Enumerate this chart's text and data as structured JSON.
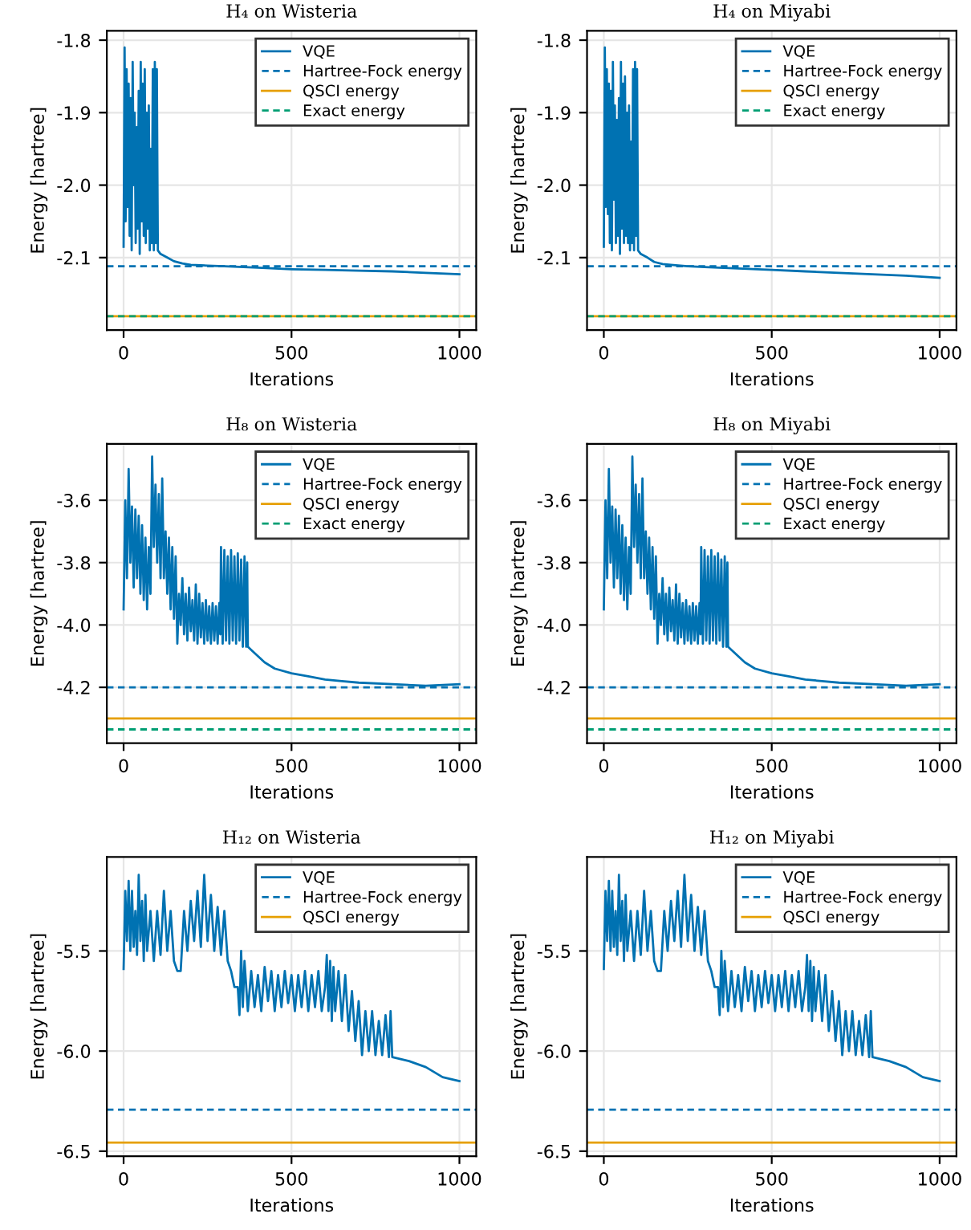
{
  "chart_data": [
    {
      "type": "line",
      "title": "H₄ on Wisteria",
      "xlabel": "Iterations",
      "ylabel": "Energy [hartree]",
      "xlim": [
        -50,
        1050
      ],
      "xticks": [
        0,
        500,
        1000
      ],
      "ylim": [
        -2.2,
        -1.787
      ],
      "yticks": [
        -2.1,
        {
          "value": -2.0,
          "label": "-2.0"
        },
        -1.9,
        -1.8
      ],
      "grid": true,
      "legend": "top right",
      "series": [
        {
          "name": "VQE",
          "color": "#0072b2",
          "line_style": "solid",
          "x": [
            0,
            3,
            6,
            9,
            12,
            15,
            18,
            21,
            24,
            27,
            30,
            33,
            36,
            39,
            42,
            45,
            48,
            51,
            54,
            57,
            60,
            63,
            66,
            69,
            72,
            75,
            78,
            81,
            84,
            87,
            90,
            93,
            96,
            99,
            102,
            110,
            130,
            150,
            175,
            200,
            250,
            300,
            400,
            500,
            600,
            700,
            800,
            900,
            1000
          ],
          "values": [
            -2.085,
            -1.81,
            -2.05,
            -1.84,
            -2.03,
            -1.86,
            -2.07,
            -1.88,
            -2.09,
            -1.83,
            -2.0,
            -1.9,
            -2.08,
            -1.92,
            -2.06,
            -1.87,
            -2.095,
            -1.83,
            -2.05,
            -1.86,
            -2.07,
            -1.84,
            -2.08,
            -1.9,
            -2.06,
            -1.89,
            -2.09,
            -1.95,
            -2.08,
            -1.84,
            -2.09,
            -1.83,
            -2.08,
            -1.84,
            -2.09,
            -2.095,
            -2.1,
            -2.105,
            -2.108,
            -2.11,
            -2.111,
            -2.112,
            -2.114,
            -2.116,
            -2.117,
            -2.118,
            -2.119,
            -2.121,
            -2.123
          ]
        }
      ],
      "ref_lines": [
        {
          "axis": "y",
          "value": -2.112,
          "label": "Hartree-Fock energy",
          "color": "#0072b2",
          "line_style": "dashed"
        },
        {
          "axis": "y",
          "value": -2.181,
          "label": "QSCI energy",
          "color": "#e69f00",
          "line_style": "solid"
        },
        {
          "axis": "y",
          "value": -2.181,
          "label": "Exact energy",
          "color": "#009e73",
          "line_style": "dashed"
        }
      ]
    },
    {
      "type": "line",
      "title": "H₄ on Miyabi",
      "xlabel": "Iterations",
      "ylabel": "Energy [hartree]",
      "xlim": [
        -50,
        1050
      ],
      "xticks": [
        0,
        500,
        1000
      ],
      "ylim": [
        -2.2,
        -1.787
      ],
      "yticks": [
        -2.1,
        {
          "value": -2.0,
          "label": "-2.0"
        },
        -1.9,
        -1.8
      ],
      "grid": true,
      "legend": "top right",
      "series": [
        {
          "name": "VQE",
          "color": "#0072b2",
          "line_style": "solid",
          "x": [
            0,
            3,
            6,
            9,
            12,
            15,
            18,
            21,
            24,
            27,
            30,
            33,
            36,
            39,
            42,
            45,
            48,
            51,
            54,
            57,
            60,
            63,
            66,
            69,
            72,
            75,
            78,
            81,
            84,
            87,
            90,
            93,
            96,
            99,
            102,
            110,
            130,
            150,
            175,
            200,
            250,
            300,
            400,
            500,
            600,
            700,
            800,
            900,
            1000
          ],
          "values": [
            -2.085,
            -1.81,
            -2.03,
            -1.84,
            -2.04,
            -1.86,
            -2.08,
            -1.87,
            -2.09,
            -1.83,
            -2.02,
            -1.89,
            -2.08,
            -1.91,
            -2.07,
            -1.88,
            -2.095,
            -1.83,
            -2.06,
            -1.86,
            -2.08,
            -1.85,
            -2.07,
            -1.9,
            -2.08,
            -1.89,
            -2.09,
            -1.94,
            -2.08,
            -1.84,
            -2.09,
            -1.83,
            -2.07,
            -1.84,
            -2.09,
            -2.095,
            -2.1,
            -2.106,
            -2.109,
            -2.11,
            -2.112,
            -2.113,
            -2.115,
            -2.117,
            -2.119,
            -2.121,
            -2.123,
            -2.125,
            -2.128
          ]
        }
      ],
      "ref_lines": [
        {
          "axis": "y",
          "value": -2.112,
          "label": "Hartree-Fock energy",
          "color": "#0072b2",
          "line_style": "dashed"
        },
        {
          "axis": "y",
          "value": -2.181,
          "label": "QSCI energy",
          "color": "#e69f00",
          "line_style": "solid"
        },
        {
          "axis": "y",
          "value": -2.181,
          "label": "Exact energy",
          "color": "#009e73",
          "line_style": "dashed"
        }
      ]
    },
    {
      "type": "line",
      "title": "H₈ on Wisteria",
      "xlabel": "Iterations",
      "ylabel": "Energy [hartree]",
      "xlim": [
        -50,
        1050
      ],
      "xticks": [
        0,
        500,
        1000
      ],
      "ylim": [
        -4.379,
        -3.419
      ],
      "yticks": [
        -4.2,
        {
          "value": -4.0,
          "label": "-4.0"
        },
        -3.8,
        -3.6
      ],
      "grid": true,
      "legend": "top right",
      "series": [
        {
          "name": "VQE",
          "color": "#0072b2",
          "line_style": "solid",
          "x": [
            0,
            5,
            10,
            15,
            20,
            25,
            30,
            35,
            40,
            45,
            50,
            55,
            60,
            65,
            70,
            75,
            80,
            85,
            90,
            95,
            100,
            105,
            110,
            115,
            120,
            125,
            130,
            135,
            140,
            145,
            150,
            155,
            160,
            165,
            170,
            175,
            180,
            185,
            190,
            195,
            200,
            205,
            210,
            215,
            220,
            225,
            230,
            235,
            240,
            245,
            250,
            255,
            260,
            265,
            270,
            275,
            280,
            285,
            288,
            290,
            295,
            300,
            305,
            310,
            315,
            320,
            325,
            330,
            335,
            340,
            345,
            350,
            355,
            360,
            365,
            368,
            370,
            380,
            400,
            420,
            450,
            500,
            550,
            600,
            650,
            700,
            800,
            900,
            1000
          ],
          "values": [
            -3.95,
            -3.6,
            -3.85,
            -3.5,
            -3.8,
            -3.62,
            -3.88,
            -3.63,
            -3.85,
            -3.65,
            -3.9,
            -3.68,
            -3.92,
            -3.72,
            -3.95,
            -3.75,
            -3.9,
            -3.46,
            -3.75,
            -3.55,
            -3.8,
            -3.58,
            -3.85,
            -3.53,
            -3.85,
            -3.7,
            -3.9,
            -3.72,
            -3.95,
            -3.75,
            -3.98,
            -3.78,
            -4.06,
            -3.9,
            -4.0,
            -3.85,
            -4.03,
            -3.9,
            -4.05,
            -3.88,
            -4.02,
            -3.92,
            -4.05,
            -3.87,
            -4.06,
            -3.9,
            -4.04,
            -3.93,
            -4.06,
            -3.92,
            -4.05,
            -3.94,
            -4.06,
            -3.93,
            -4.05,
            -3.94,
            -4.06,
            -3.93,
            -4.03,
            -3.75,
            -4.06,
            -3.76,
            -4.05,
            -3.78,
            -4.06,
            -3.76,
            -4.05,
            -3.78,
            -4.06,
            -3.77,
            -4.05,
            -3.79,
            -4.07,
            -3.78,
            -4.07,
            -3.8,
            -4.07,
            -4.08,
            -4.1,
            -4.12,
            -4.14,
            -4.155,
            -4.165,
            -4.175,
            -4.18,
            -4.185,
            -4.19,
            -4.195,
            -4.19
          ]
        }
      ],
      "ref_lines": [
        {
          "axis": "y",
          "value": -4.2,
          "label": "Hartree-Fock energy",
          "color": "#0072b2",
          "line_style": "dashed"
        },
        {
          "axis": "y",
          "value": -4.3,
          "label": "QSCI energy",
          "color": "#e69f00",
          "line_style": "solid"
        },
        {
          "axis": "y",
          "value": -4.335,
          "label": "Exact energy",
          "color": "#009e73",
          "line_style": "dashed"
        }
      ]
    },
    {
      "type": "line",
      "title": "H₈ on Miyabi",
      "xlabel": "Iterations",
      "ylabel": "Energy [hartree]",
      "xlim": [
        -50,
        1050
      ],
      "xticks": [
        0,
        500,
        1000
      ],
      "ylim": [
        -4.379,
        -3.419
      ],
      "yticks": [
        -4.2,
        {
          "value": -4.0,
          "label": "-4.0"
        },
        -3.8,
        -3.6
      ],
      "grid": true,
      "legend": "top right",
      "series": [
        {
          "name": "VQE",
          "color": "#0072b2",
          "line_style": "solid",
          "x": [
            0,
            5,
            10,
            15,
            20,
            25,
            30,
            35,
            40,
            45,
            50,
            55,
            60,
            65,
            70,
            75,
            80,
            85,
            90,
            95,
            100,
            105,
            110,
            115,
            120,
            125,
            130,
            135,
            140,
            145,
            150,
            155,
            160,
            165,
            170,
            175,
            180,
            185,
            190,
            195,
            200,
            205,
            210,
            215,
            220,
            225,
            230,
            235,
            240,
            245,
            250,
            255,
            260,
            265,
            270,
            275,
            280,
            285,
            288,
            290,
            295,
            300,
            305,
            310,
            315,
            320,
            325,
            330,
            335,
            340,
            345,
            350,
            355,
            360,
            365,
            368,
            370,
            380,
            400,
            420,
            450,
            500,
            550,
            600,
            650,
            700,
            800,
            900,
            1000
          ],
          "values": [
            -3.95,
            -3.6,
            -3.85,
            -3.5,
            -3.8,
            -3.62,
            -3.88,
            -3.63,
            -3.85,
            -3.65,
            -3.9,
            -3.68,
            -3.92,
            -3.72,
            -3.95,
            -3.75,
            -3.9,
            -3.46,
            -3.75,
            -3.55,
            -3.8,
            -3.58,
            -3.85,
            -3.53,
            -3.85,
            -3.7,
            -3.9,
            -3.72,
            -3.95,
            -3.75,
            -3.98,
            -3.78,
            -4.06,
            -3.9,
            -4.0,
            -3.85,
            -4.03,
            -3.9,
            -4.05,
            -3.88,
            -4.02,
            -3.92,
            -4.05,
            -3.87,
            -4.06,
            -3.9,
            -4.04,
            -3.93,
            -4.06,
            -3.92,
            -4.05,
            -3.94,
            -4.06,
            -3.93,
            -4.05,
            -3.94,
            -4.06,
            -3.93,
            -4.03,
            -3.75,
            -4.06,
            -3.76,
            -4.05,
            -3.78,
            -4.06,
            -3.76,
            -4.05,
            -3.78,
            -4.06,
            -3.77,
            -4.05,
            -3.79,
            -4.07,
            -3.78,
            -4.07,
            -3.8,
            -4.07,
            -4.08,
            -4.1,
            -4.12,
            -4.14,
            -4.155,
            -4.165,
            -4.175,
            -4.18,
            -4.185,
            -4.19,
            -4.195,
            -4.19
          ]
        }
      ],
      "ref_lines": [
        {
          "axis": "y",
          "value": -4.2,
          "label": "Hartree-Fock energy",
          "color": "#0072b2",
          "line_style": "dashed"
        },
        {
          "axis": "y",
          "value": -4.3,
          "label": "QSCI energy",
          "color": "#e69f00",
          "line_style": "solid"
        },
        {
          "axis": "y",
          "value": -4.335,
          "label": "Exact energy",
          "color": "#009e73",
          "line_style": "dashed"
        }
      ]
    },
    {
      "type": "line",
      "title": "H₁₂ on Wisteria",
      "xlabel": "Iterations",
      "ylabel": "Energy [hartree]",
      "xlim": [
        -50,
        1050
      ],
      "xticks": [
        0,
        500,
        1000
      ],
      "ylim": [
        -6.525,
        -5.03
      ],
      "yticks": [
        -6.5,
        {
          "value": -6.0,
          "label": "-6.0"
        },
        -5.5
      ],
      "grid": true,
      "legend": "top right",
      "series": [
        {
          "name": "VQE",
          "color": "#0072b2",
          "line_style": "solid",
          "x": [
            0,
            5,
            10,
            15,
            20,
            25,
            30,
            35,
            40,
            45,
            50,
            55,
            60,
            65,
            70,
            80,
            90,
            100,
            110,
            120,
            130,
            140,
            150,
            160,
            170,
            180,
            190,
            200,
            210,
            220,
            230,
            240,
            250,
            260,
            270,
            280,
            290,
            300,
            310,
            320,
            330,
            340,
            345,
            350,
            355,
            360,
            370,
            380,
            390,
            400,
            410,
            420,
            430,
            440,
            450,
            460,
            470,
            480,
            490,
            500,
            510,
            520,
            530,
            540,
            550,
            560,
            570,
            580,
            590,
            600,
            605,
            610,
            615,
            620,
            625,
            630,
            640,
            650,
            660,
            670,
            680,
            690,
            700,
            710,
            720,
            730,
            740,
            750,
            760,
            770,
            780,
            790,
            795,
            800,
            850,
            900,
            950,
            1000
          ],
          "values": [
            -5.59,
            -5.2,
            -5.45,
            -5.15,
            -5.5,
            -5.2,
            -5.48,
            -5.3,
            -5.52,
            -5.12,
            -5.45,
            -5.25,
            -5.55,
            -5.22,
            -5.5,
            -5.3,
            -5.55,
            -5.3,
            -5.52,
            -5.2,
            -5.5,
            -5.3,
            -5.55,
            -5.6,
            -5.6,
            -5.3,
            -5.5,
            -5.25,
            -5.45,
            -5.2,
            -5.48,
            -5.12,
            -5.45,
            -5.22,
            -5.5,
            -5.28,
            -5.52,
            -5.3,
            -5.55,
            -5.6,
            -5.68,
            -5.68,
            -5.82,
            -5.5,
            -5.78,
            -5.55,
            -5.8,
            -5.6,
            -5.78,
            -5.62,
            -5.8,
            -5.58,
            -5.75,
            -5.6,
            -5.8,
            -5.62,
            -5.78,
            -5.6,
            -5.76,
            -5.62,
            -5.8,
            -5.62,
            -5.78,
            -5.6,
            -5.8,
            -5.62,
            -5.78,
            -5.6,
            -5.8,
            -5.68,
            -5.52,
            -5.8,
            -5.55,
            -5.85,
            -5.58,
            -5.8,
            -5.6,
            -5.85,
            -5.62,
            -5.9,
            -5.7,
            -5.95,
            -5.75,
            -6.02,
            -5.8,
            -6.0,
            -5.8,
            -6.02,
            -5.85,
            -6.02,
            -5.82,
            -6.03,
            -5.8,
            -6.03,
            -6.05,
            -6.08,
            -6.13,
            -6.15
          ]
        }
      ],
      "ref_lines": [
        {
          "axis": "y",
          "value": -6.293,
          "label": "Hartree-Fock energy",
          "color": "#0072b2",
          "line_style": "dashed"
        },
        {
          "axis": "y",
          "value": -6.457,
          "label": "QSCI energy",
          "color": "#e69f00",
          "line_style": "solid"
        }
      ]
    },
    {
      "type": "line",
      "title": "H₁₂ on Miyabi",
      "xlabel": "Iterations",
      "ylabel": "Energy [hartree]",
      "xlim": [
        -50,
        1050
      ],
      "xticks": [
        0,
        500,
        1000
      ],
      "ylim": [
        -6.525,
        -5.03
      ],
      "yticks": [
        -6.5,
        {
          "value": -6.0,
          "label": "-6.0"
        },
        -5.5
      ],
      "grid": true,
      "legend": "top right",
      "series": [
        {
          "name": "VQE",
          "color": "#0072b2",
          "line_style": "solid",
          "x": [
            0,
            5,
            10,
            15,
            20,
            25,
            30,
            35,
            40,
            45,
            50,
            55,
            60,
            65,
            70,
            80,
            90,
            100,
            110,
            120,
            130,
            140,
            150,
            160,
            170,
            180,
            190,
            200,
            210,
            220,
            230,
            240,
            250,
            260,
            270,
            280,
            290,
            300,
            310,
            320,
            330,
            340,
            345,
            350,
            355,
            360,
            370,
            380,
            390,
            400,
            410,
            420,
            430,
            440,
            450,
            460,
            470,
            480,
            490,
            500,
            510,
            520,
            530,
            540,
            550,
            560,
            570,
            580,
            590,
            600,
            605,
            610,
            615,
            620,
            625,
            630,
            640,
            650,
            660,
            670,
            680,
            690,
            700,
            710,
            720,
            730,
            740,
            750,
            760,
            770,
            780,
            790,
            795,
            800,
            850,
            900,
            950,
            1000
          ],
          "values": [
            -5.59,
            -5.2,
            -5.45,
            -5.15,
            -5.5,
            -5.2,
            -5.48,
            -5.3,
            -5.52,
            -5.12,
            -5.45,
            -5.25,
            -5.55,
            -5.22,
            -5.5,
            -5.3,
            -5.55,
            -5.3,
            -5.52,
            -5.2,
            -5.5,
            -5.3,
            -5.55,
            -5.6,
            -5.6,
            -5.3,
            -5.5,
            -5.25,
            -5.45,
            -5.2,
            -5.48,
            -5.12,
            -5.45,
            -5.22,
            -5.5,
            -5.28,
            -5.52,
            -5.3,
            -5.55,
            -5.6,
            -5.68,
            -5.68,
            -5.82,
            -5.5,
            -5.78,
            -5.55,
            -5.8,
            -5.6,
            -5.78,
            -5.62,
            -5.8,
            -5.58,
            -5.75,
            -5.6,
            -5.8,
            -5.62,
            -5.78,
            -5.6,
            -5.76,
            -5.62,
            -5.8,
            -5.62,
            -5.78,
            -5.6,
            -5.8,
            -5.62,
            -5.78,
            -5.6,
            -5.8,
            -5.68,
            -5.52,
            -5.8,
            -5.55,
            -5.85,
            -5.58,
            -5.8,
            -5.6,
            -5.85,
            -5.62,
            -5.9,
            -5.7,
            -5.95,
            -5.75,
            -6.02,
            -5.8,
            -6.0,
            -5.8,
            -6.02,
            -5.85,
            -6.02,
            -5.82,
            -6.03,
            -5.8,
            -6.03,
            -6.05,
            -6.08,
            -6.13,
            -6.15
          ]
        }
      ],
      "ref_lines": [
        {
          "axis": "y",
          "value": -6.293,
          "label": "Hartree-Fock energy",
          "color": "#0072b2",
          "line_style": "dashed"
        },
        {
          "axis": "y",
          "value": -6.457,
          "label": "QSCI energy",
          "color": "#e69f00",
          "line_style": "solid"
        }
      ]
    }
  ]
}
